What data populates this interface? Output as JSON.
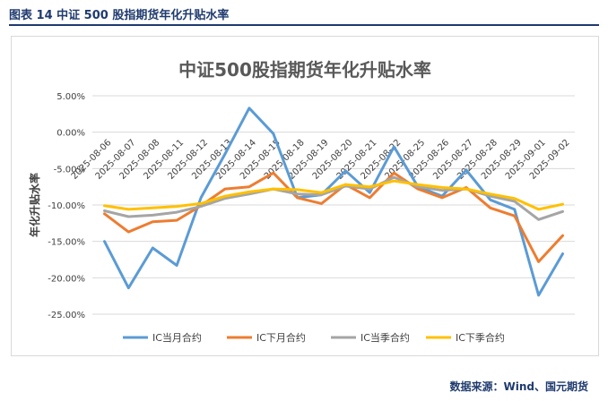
{
  "header": {
    "caption": "图表 14  中证 500 股指期货年化升贴水率"
  },
  "footer": {
    "source": "数据来源：Wind、国元期货"
  },
  "chart_data": {
    "type": "line",
    "title": "中证500股指期货年化升贴水率",
    "ylabel": "年化升贴水率",
    "xlabel": "",
    "categories": [
      "2025-08-06",
      "2025-08-07",
      "2025-08-08",
      "2025-08-11",
      "2025-08-12",
      "2025-08-13",
      "2025-08-14",
      "2025-08-15",
      "2025-08-18",
      "2025-08-19",
      "2025-08-20",
      "2025-08-21",
      "2025-08-22",
      "2025-08-25",
      "2025-08-26",
      "2025-08-27",
      "2025-08-28",
      "2025-08-29",
      "2025-09-01",
      "2025-09-02"
    ],
    "yticks": [
      "5.00%",
      "0.00%",
      "-5.00%",
      "-10.00%",
      "-15.00%",
      "-20.00%",
      "-25.00%"
    ],
    "ylim": [
      -25,
      5
    ],
    "legend_position": "bottom",
    "series": [
      {
        "name": "IC当月合约",
        "color": "#5b9bd5",
        "values": [
          -15.0,
          -21.4,
          -15.9,
          -18.3,
          -9.0,
          -3.0,
          3.3,
          -0.2,
          -9.0,
          -8.6,
          -5.3,
          -8.3,
          -2.0,
          -7.5,
          -8.8,
          -5.2,
          -9.3,
          -10.6,
          -22.4,
          -16.7
        ]
      },
      {
        "name": "IC下月合约",
        "color": "#ed7d31",
        "values": [
          -11.2,
          -13.7,
          -12.3,
          -12.1,
          -10.1,
          -7.8,
          -7.5,
          -5.6,
          -9.0,
          -9.8,
          -7.2,
          -9.0,
          -5.6,
          -7.8,
          -9.0,
          -7.6,
          -10.4,
          -11.5,
          -17.8,
          -14.2
        ]
      },
      {
        "name": "IC当季合约",
        "color": "#a5a5a5",
        "values": [
          -10.8,
          -11.6,
          -11.4,
          -11.0,
          -10.2,
          -9.1,
          -8.5,
          -7.8,
          -8.5,
          -8.6,
          -7.4,
          -7.8,
          -6.2,
          -7.5,
          -8.0,
          -7.8,
          -8.8,
          -9.5,
          -12.0,
          -10.9
        ]
      },
      {
        "name": "IC下季合约",
        "color": "#ffc000",
        "values": [
          -10.1,
          -10.6,
          -10.4,
          -10.2,
          -9.8,
          -8.8,
          -8.2,
          -7.8,
          -7.9,
          -8.3,
          -7.2,
          -7.5,
          -6.7,
          -7.2,
          -7.6,
          -7.8,
          -8.5,
          -9.1,
          -10.6,
          -9.9
        ]
      }
    ]
  }
}
